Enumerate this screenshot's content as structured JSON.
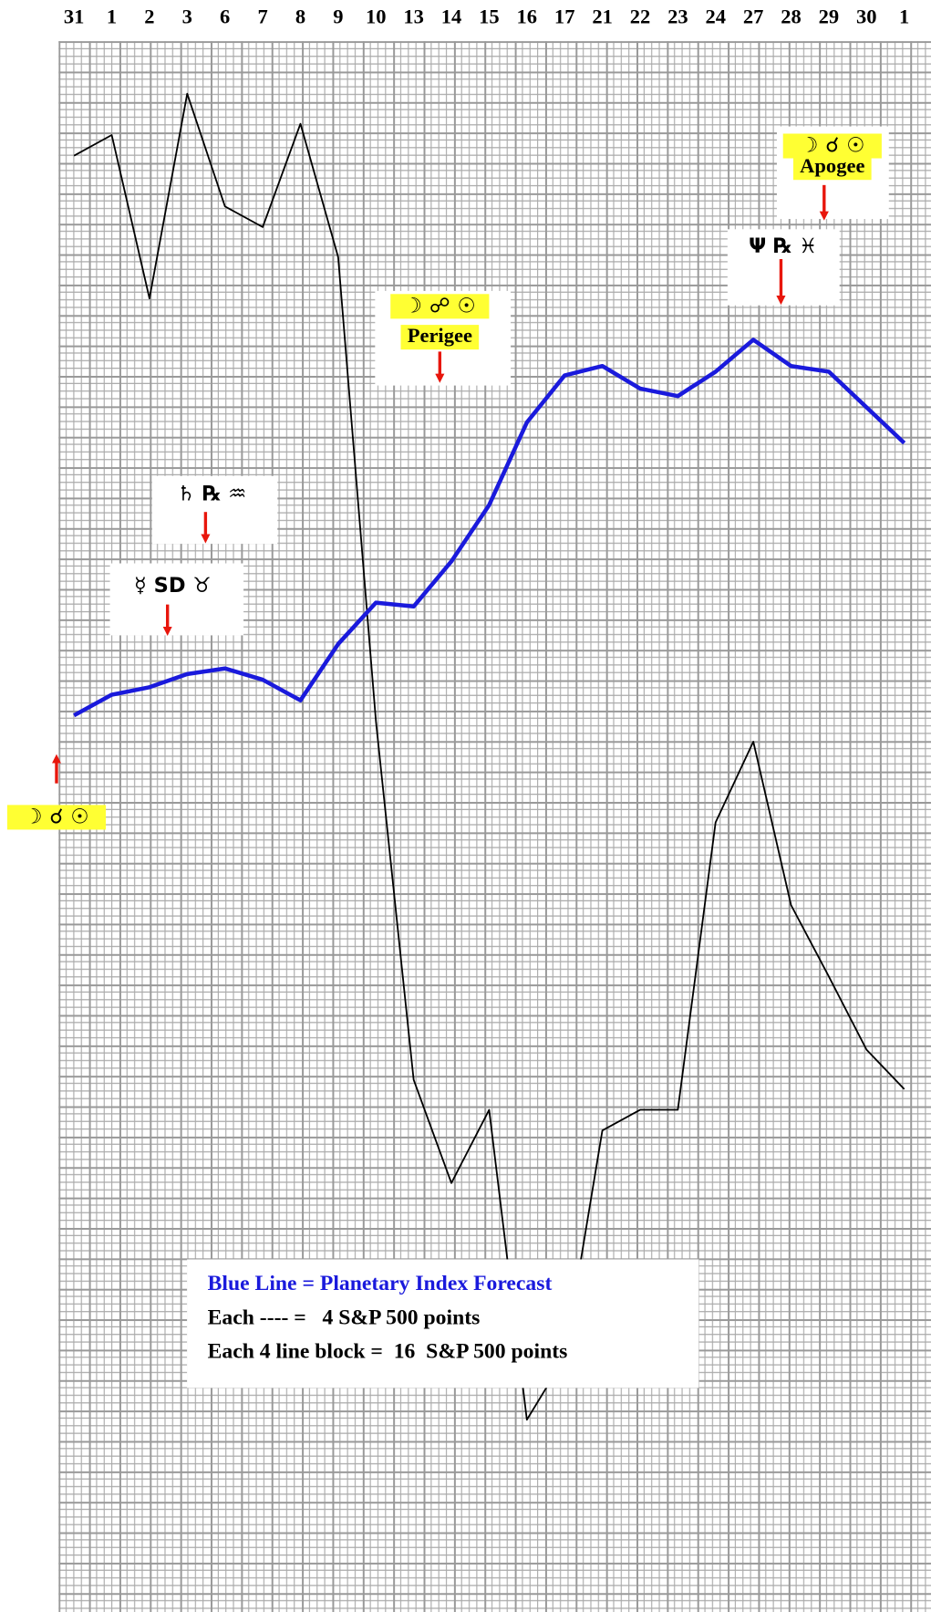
{
  "chart_data": {
    "type": "line",
    "categories": [
      "31",
      "1",
      "2",
      "3",
      "6",
      "7",
      "8",
      "9",
      "10",
      "13",
      "14",
      "15",
      "16",
      "17",
      "21",
      "22",
      "23",
      "24",
      "27",
      "28",
      "29",
      "30",
      "1"
    ],
    "ylim": [
      0,
      832
    ],
    "series": [
      {
        "color": "#000000",
        "values": [
          771,
          782,
          695,
          804,
          744,
          733,
          788,
          717,
          470,
          279,
          224,
          263,
          98,
          131,
          252,
          263,
          263,
          416,
          459,
          372,
          334,
          295,
          274
        ]
      },
      {
        "color": "#1a1adc",
        "values": [
          473,
          484,
          488,
          495,
          498,
          492,
          481,
          511,
          533,
          531,
          555,
          585,
          629,
          654,
          659,
          647,
          643,
          656,
          673,
          659,
          656,
          637,
          618
        ]
      }
    ],
    "annotations": [
      {
        "glyphs": "☽ ☌ ☉"
      },
      {
        "glyphs": "☿ SD ♉"
      },
      {
        "glyphs": "♄ ℞ ♒"
      },
      {
        "glyphs": "☽ ☍ ☉",
        "label": "Perigee"
      },
      {
        "glyphs": "Ψ ℞ ♓"
      },
      {
        "glyphs": "☽ ☌ ☉",
        "label": "Apogee"
      }
    ],
    "legend_text": [
      "Blue Line = Planetary Index Forecast",
      "Each ---- =   4 S&P 500 points",
      "Each 4 line block =  16  S&P 500 points"
    ]
  }
}
